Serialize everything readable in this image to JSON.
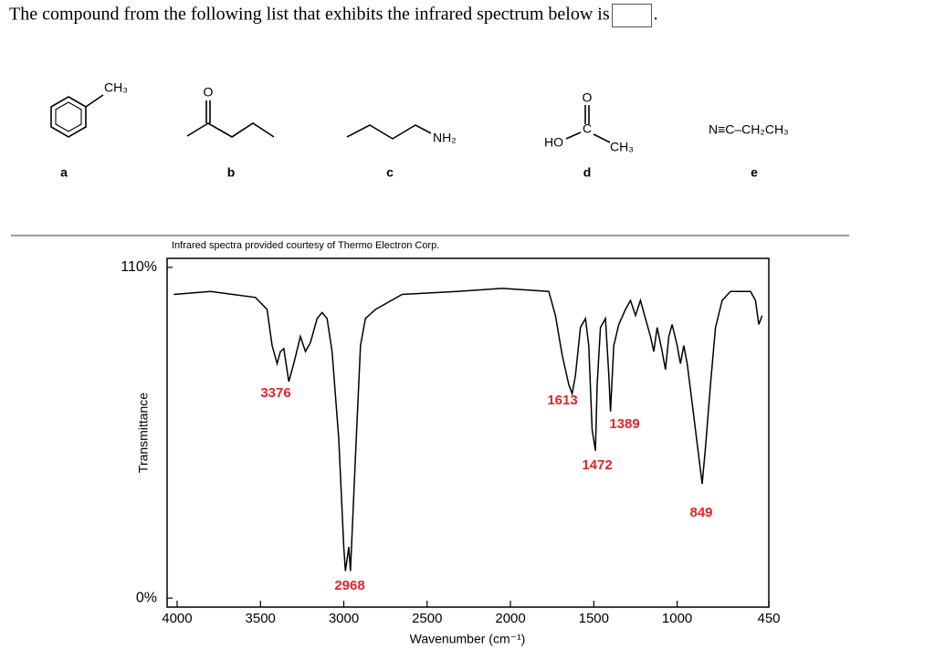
{
  "question": {
    "text": "The compound from the following list that exhibits the infrared spectrum below is",
    "end": "."
  },
  "compounds": [
    {
      "label": "a",
      "texts": [
        "CH₃"
      ]
    },
    {
      "label": "b",
      "texts": [
        "O"
      ]
    },
    {
      "label": "c",
      "texts": [
        "NH₂"
      ]
    },
    {
      "label": "d",
      "texts": [
        "O",
        "C",
        "HO",
        "CH₃"
      ]
    },
    {
      "label": "e",
      "texts": [
        "N≡C–CH₂CH₃"
      ]
    }
  ],
  "chart_data": {
    "type": "line",
    "subtitle": "Infrared spectra provided courtesy of Thermo Electron Corp.",
    "x_label": "Wavenumber (cm⁻¹)",
    "y_label": "Transmittance",
    "xlim": [
      4060,
      450
    ],
    "ylim": [
      -3,
      113
    ],
    "xticks": [
      4000,
      3500,
      3000,
      2500,
      2000,
      1500,
      1000,
      450
    ],
    "yticks": [
      {
        "value": 110,
        "label": "110%"
      },
      {
        "value": 0,
        "label": "0%"
      }
    ],
    "color": "#000000",
    "x": [
      4020,
      3800,
      3530,
      3460,
      3430,
      3400,
      3380,
      3360,
      3330,
      3300,
      3260,
      3230,
      3200,
      3160,
      3130,
      3100,
      3070,
      3030,
      3000,
      2990,
      2970,
      2960,
      2930,
      2900,
      2870,
      2810,
      2650,
      2320,
      2050,
      1770,
      1730,
      1690,
      1650,
      1630,
      1610,
      1580,
      1550,
      1530,
      1510,
      1490,
      1480,
      1460,
      1430,
      1410,
      1400,
      1380,
      1350,
      1310,
      1280,
      1250,
      1220,
      1190,
      1160,
      1140,
      1120,
      1090,
      1070,
      1050,
      1030,
      1000,
      980,
      960,
      940,
      910,
      870,
      850,
      830,
      800,
      770,
      730,
      680,
      600,
      560,
      530,
      510,
      490
    ],
    "values": [
      101,
      102,
      100,
      96,
      84,
      78,
      82,
      83,
      72,
      78,
      87,
      82,
      85,
      93,
      95,
      93,
      82,
      53,
      17,
      9,
      17,
      9,
      47,
      84,
      93,
      96,
      101,
      102,
      103,
      102,
      94,
      81,
      71,
      68,
      74,
      90,
      93,
      84,
      56,
      49,
      71,
      90,
      93,
      74,
      62,
      84,
      91,
      96,
      99,
      94,
      99,
      93,
      87,
      82,
      90,
      82,
      76,
      87,
      91,
      84,
      78,
      84,
      78,
      65,
      47,
      38,
      50,
      71,
      90,
      99,
      102,
      102,
      102,
      99,
      91,
      94
    ],
    "annotations": [
      "3376",
      "2968",
      "1613",
      "1389",
      "1472",
      "849"
    ]
  }
}
